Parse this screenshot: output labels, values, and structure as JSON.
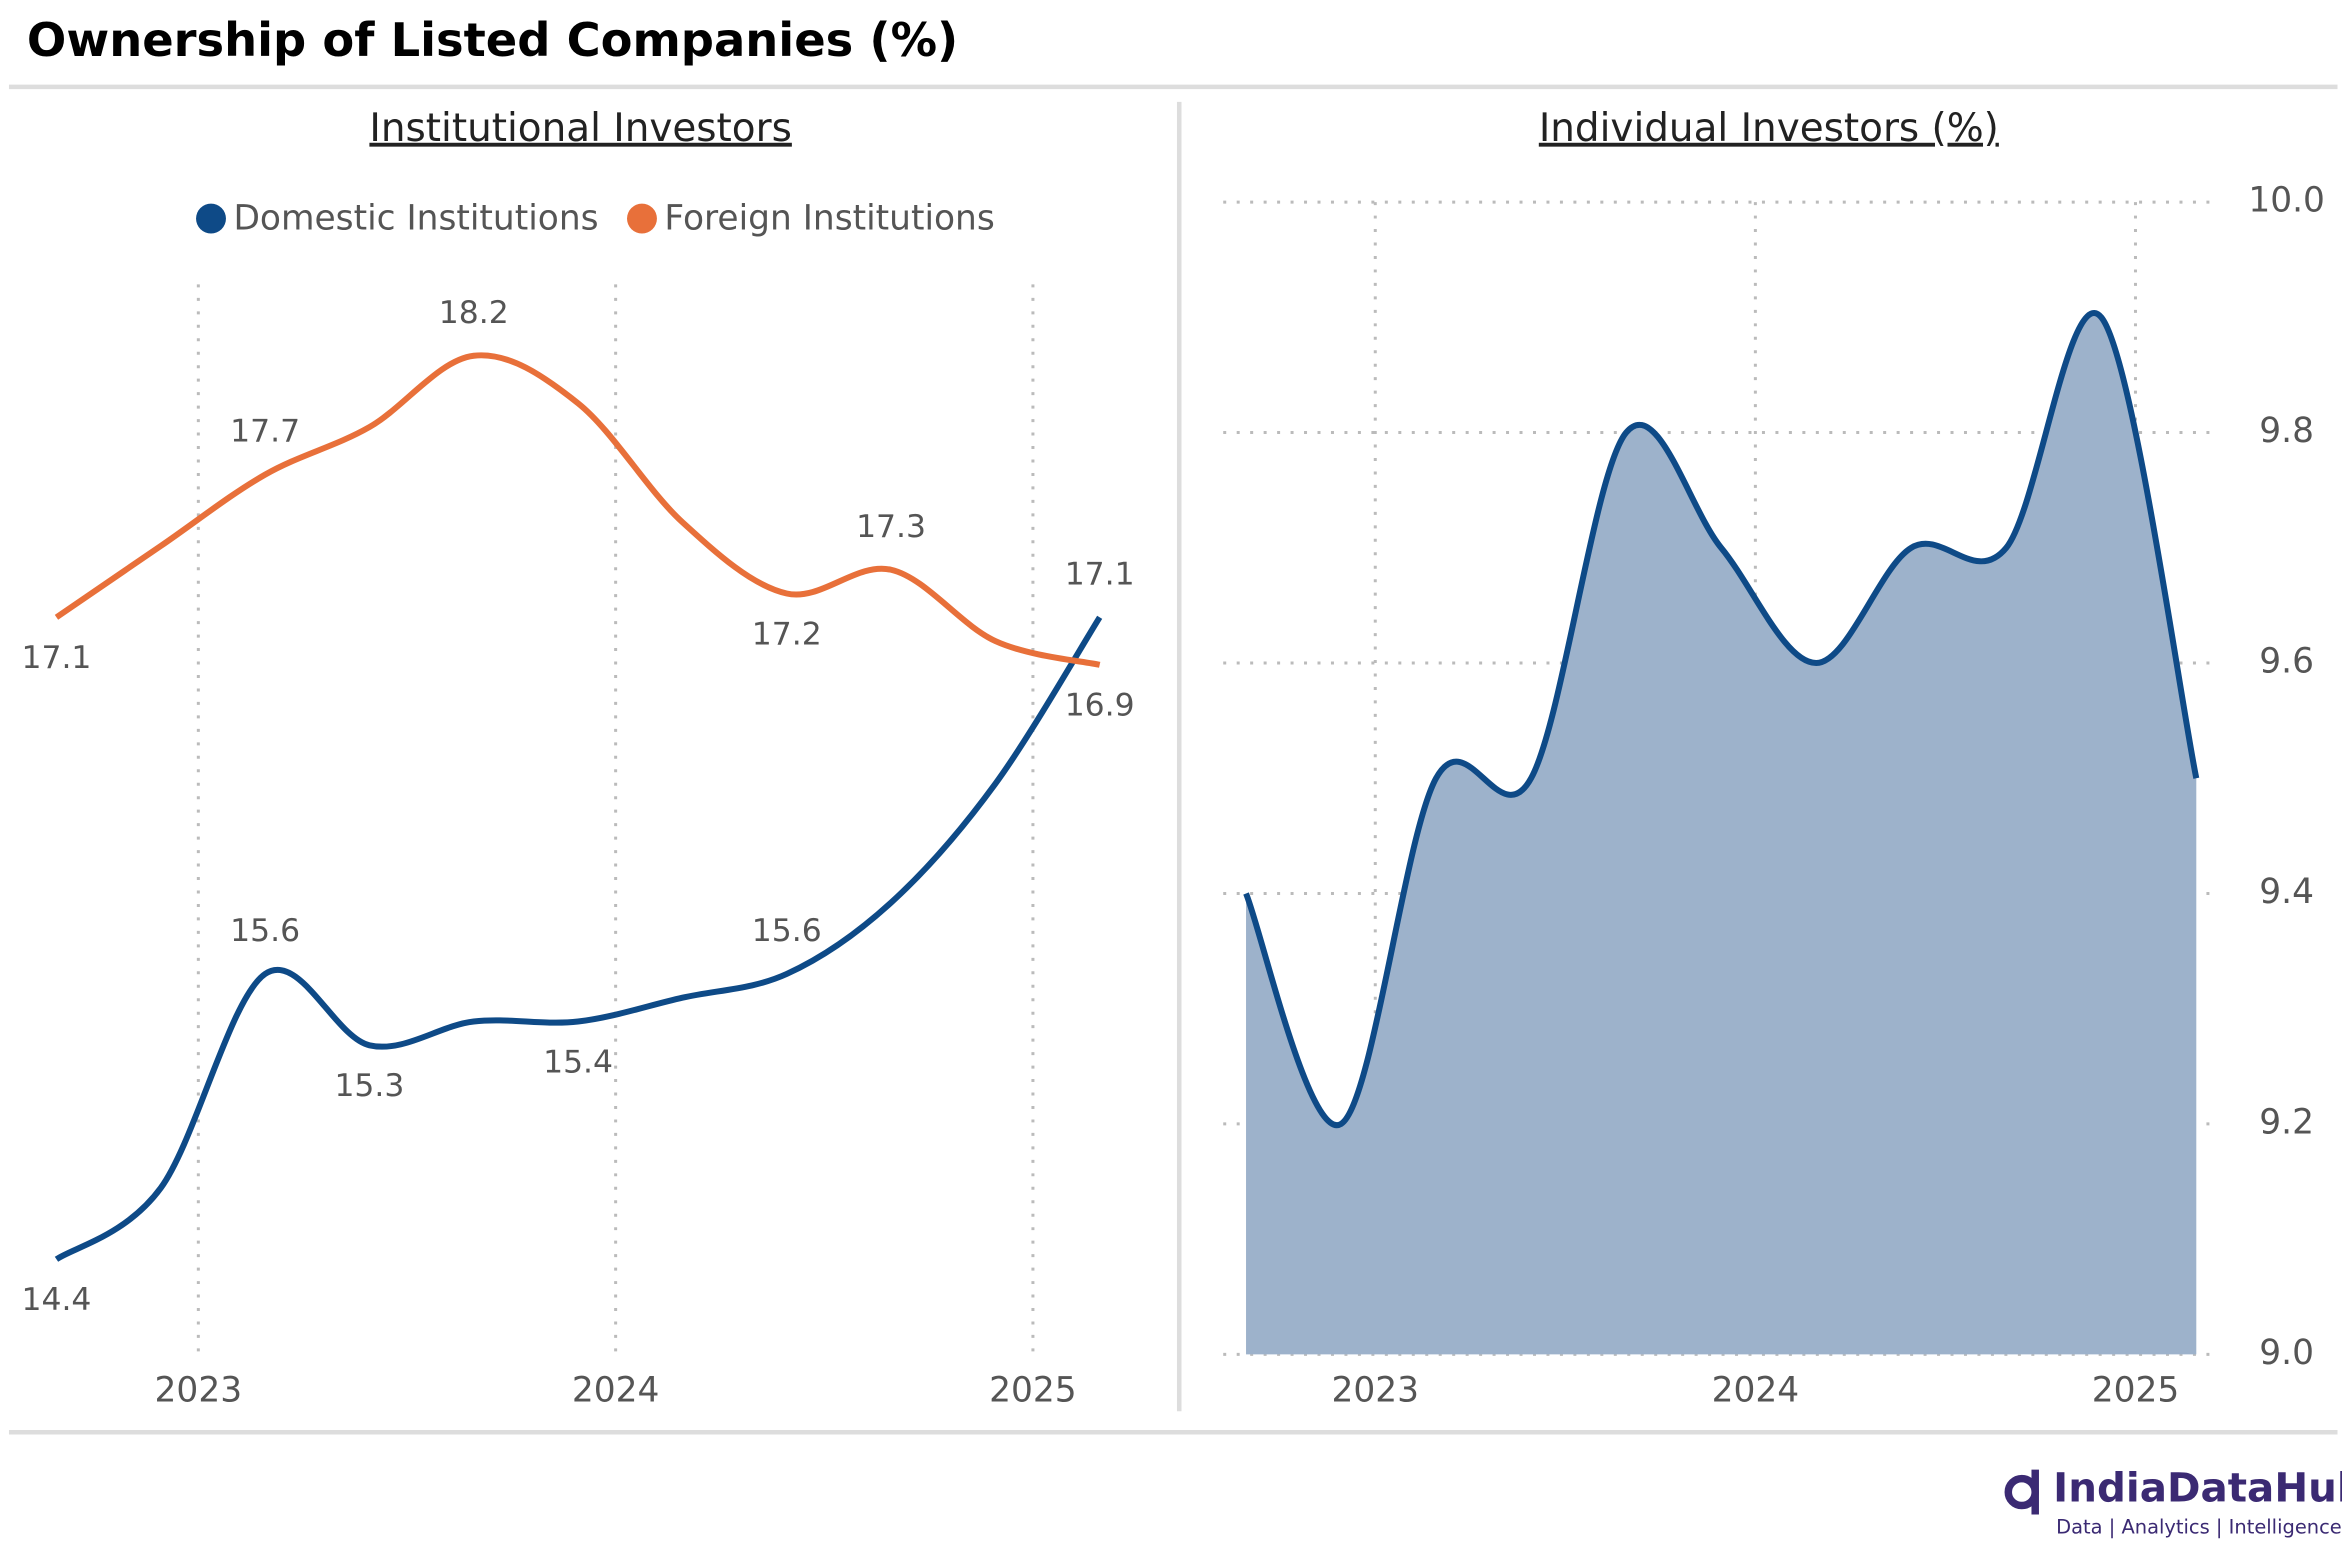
{
  "header": {
    "title": "Ownership of Listed Companies (%)"
  },
  "footer": {
    "brand": "IndiaDataHub",
    "tagline": "Data | Analytics | Intelligence"
  },
  "chart_data": [
    {
      "type": "line",
      "title": "Institutional Investors",
      "x": [
        2022.66,
        2022.91,
        2023.16,
        2023.41,
        2023.66,
        2023.91,
        2024.16,
        2024.41,
        2024.66,
        2024.91,
        2025.16
      ],
      "xlim": [
        2022.6,
        2025.2
      ],
      "xticks": [
        2023,
        2024,
        2025
      ],
      "ylim": [
        14,
        18.5
      ],
      "grid": true,
      "legend": "top",
      "series": [
        {
          "name": "Domestic Institutions",
          "color": "#0e4a87",
          "values": [
            14.4,
            14.7,
            15.6,
            15.3,
            15.4,
            15.4,
            15.5,
            15.6,
            15.9,
            16.4,
            17.1
          ],
          "value_labels": [
            "14.4",
            null,
            "15.6",
            "15.3",
            null,
            "15.4",
            null,
            "15.6",
            null,
            null,
            "17.1"
          ]
        },
        {
          "name": "Foreign Institutions",
          "color": "#e8703a",
          "values": [
            17.1,
            17.4,
            17.7,
            17.9,
            18.2,
            18.0,
            17.5,
            17.2,
            17.3,
            17.0,
            16.9
          ],
          "value_labels": [
            "17.1",
            null,
            "17.7",
            null,
            "18.2",
            null,
            null,
            "17.2",
            "17.3",
            null,
            "16.9"
          ]
        }
      ]
    },
    {
      "type": "area",
      "title": "Individual Investors (%)",
      "x": [
        2022.66,
        2022.91,
        2023.16,
        2023.41,
        2023.66,
        2023.91,
        2024.16,
        2024.41,
        2024.66,
        2024.91,
        2025.16
      ],
      "xlim": [
        2022.6,
        2025.2
      ],
      "xticks": [
        2023,
        2024,
        2025
      ],
      "ylim": [
        9,
        10
      ],
      "yticks": [
        {
          "value": 9,
          "label": "9.0"
        },
        9.2,
        9.4,
        9.6,
        9.8,
        {
          "value": 10,
          "label": "10.0"
        }
      ],
      "grid": true,
      "series": [
        {
          "name": "Individual Investors",
          "color": "#0e4a87",
          "fill": "#9db2cb",
          "values": [
            9.4,
            9.2,
            9.5,
            9.5,
            9.8,
            9.7,
            9.6,
            9.7,
            9.7,
            9.9,
            9.5
          ]
        }
      ]
    }
  ]
}
